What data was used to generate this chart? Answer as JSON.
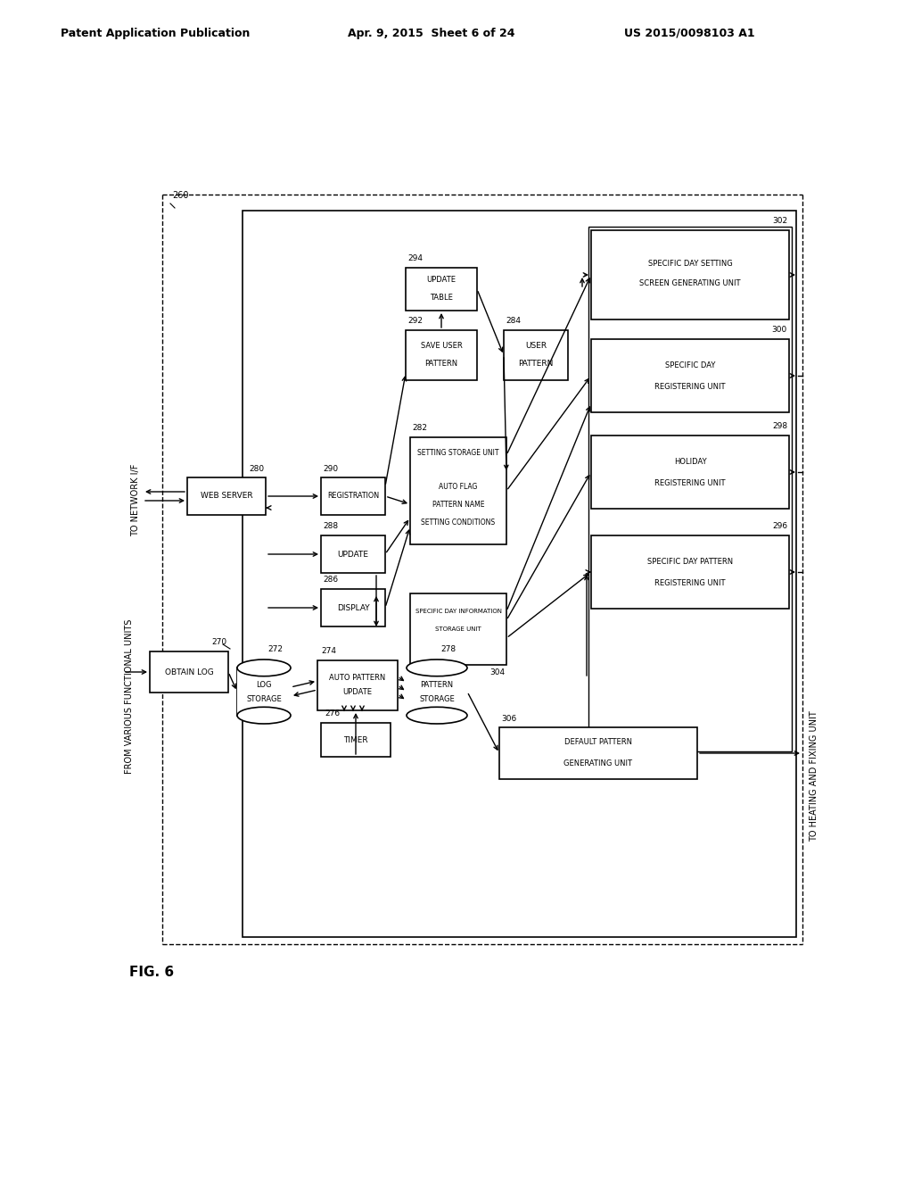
{
  "header_left": "Patent Application Publication",
  "header_mid": "Apr. 9, 2015  Sheet 6 of 24",
  "header_right": "US 2015/0098103 A1",
  "fig_label": "FIG. 6",
  "background": "#ffffff"
}
